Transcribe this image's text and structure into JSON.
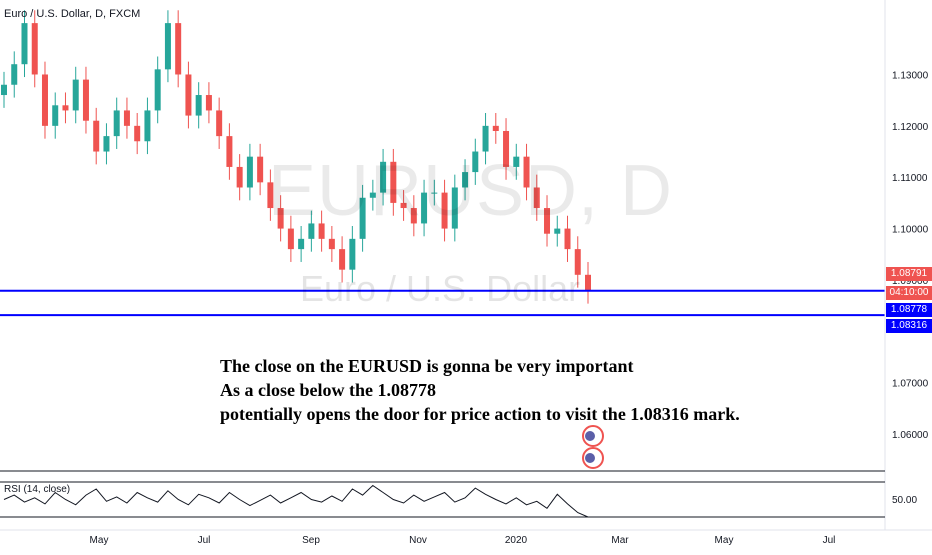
{
  "header": {
    "title": "Euro / U.S. Dollar, D, FXCM"
  },
  "watermark": {
    "symbol": "EURUSD, D",
    "description": "Euro / U.S. Dollar"
  },
  "annotation": {
    "line1": "The close on the EURUSD is gonna be very important",
    "line2": "As a close below the 1.08778",
    "line3": "potentially opens the door for price action to visit the 1.08316 mark."
  },
  "indicator": {
    "label": "RSI (14, close)",
    "level_label": "50.00"
  },
  "price_tags": {
    "current": "1.08791",
    "countdown": "04:10:00",
    "level1": "1.08778",
    "level2": "1.08316"
  },
  "colors": {
    "up": "#26a69a",
    "down": "#ef5350",
    "level_line": "#0000ff",
    "current_tag": "#ef5350",
    "countdown_tag": "#ef5350",
    "level_tag": "#0000ff"
  },
  "chart_data": {
    "type": "line",
    "title": "Euro / U.S. Dollar, D, FXCM",
    "xlabel": "",
    "ylabel": "",
    "ylim": [
      1.053,
      1.1445
    ],
    "x_ticks": [
      "May",
      "Jul",
      "Sep",
      "Nov",
      "2020",
      "Mar",
      "May",
      "Jul"
    ],
    "y_ticks": [
      "1.13000",
      "1.12000",
      "1.11000",
      "1.10000",
      "1.09000",
      "1.07000",
      "1.06000"
    ],
    "series": [
      {
        "values": [
          1.128,
          1.132,
          1.14,
          1.13,
          1.12,
          1.124,
          1.123,
          1.129,
          1.121,
          1.115,
          1.118,
          1.123,
          1.12,
          1.117,
          1.123,
          1.131,
          1.14,
          1.13,
          1.122,
          1.126,
          1.123,
          1.118,
          1.112,
          1.108,
          1.114,
          1.109,
          1.104,
          1.1,
          1.096,
          1.098,
          1.101,
          1.098,
          1.096,
          1.092,
          1.098,
          1.106,
          1.107,
          1.113,
          1.105,
          1.104,
          1.101,
          1.107,
          1.107,
          1.1,
          1.108,
          1.111,
          1.115,
          1.12,
          1.119,
          1.112,
          1.114,
          1.108,
          1.104,
          1.099,
          1.1,
          1.096,
          1.091,
          1.0879
        ]
      }
    ],
    "horizontal_levels": [
      1.08778,
      1.08316
    ],
    "rsi": {
      "label": "RSI (14, close)",
      "level": 50,
      "values": [
        50,
        55,
        47,
        52,
        45,
        58,
        50,
        44,
        55,
        62,
        48,
        53,
        46,
        58,
        52,
        47,
        60,
        50,
        44,
        56,
        52,
        46,
        58,
        50,
        43,
        49,
        55,
        46,
        52,
        58,
        50,
        47,
        54,
        48,
        62,
        55,
        66,
        58,
        50,
        46,
        55,
        48,
        53,
        58,
        47,
        52,
        63,
        56,
        50,
        45,
        52,
        44,
        48,
        40,
        56,
        45,
        35,
        30
      ]
    }
  }
}
